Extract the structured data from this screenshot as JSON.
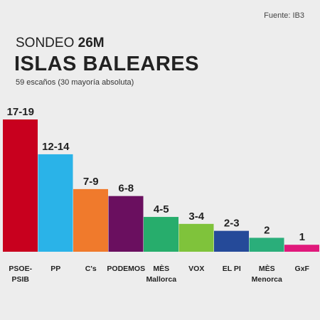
{
  "source": "Fuente: IB3",
  "title": {
    "prefix": "SONDEO",
    "emphasis": "26M"
  },
  "headline": "ISLAS BALEARES",
  "subtitle": "59 escaños (30 mayoría absoluta)",
  "chart_data": {
    "type": "bar",
    "title": "SONDEO 26M ISLAS BALEARES",
    "subtitle": "59 escaños (30 mayoría absoluta)",
    "categories": [
      "PSOE-PSIB",
      "PP",
      "C's",
      "PODEMOS",
      "MÈS Mallorca",
      "VOX",
      "EL PI",
      "MÈS Menorca",
      "GxF"
    ],
    "category_lines": [
      [
        "PSOE-",
        "PSIB"
      ],
      [
        "PP"
      ],
      [
        "C's"
      ],
      [
        "PODEMOS"
      ],
      [
        "MÈS",
        "Mallorca"
      ],
      [
        "VOX"
      ],
      [
        "EL PI"
      ],
      [
        "MÈS",
        "Menorca"
      ],
      [
        "GxF"
      ]
    ],
    "value_labels": [
      "17-19",
      "12-14",
      "7-9",
      "6-8",
      "4-5",
      "3-4",
      "2-3",
      "2",
      "1"
    ],
    "values": [
      19,
      14,
      9,
      8,
      5,
      4,
      3,
      2,
      1
    ],
    "colors": [
      "#c8001e",
      "#2ab3e8",
      "#f07a2c",
      "#6a0f5f",
      "#27ad6c",
      "#7fc33b",
      "#254a99",
      "#2aae7a",
      "#e0197b"
    ],
    "ylim": [
      0,
      19
    ],
    "grid": false,
    "legend": "none"
  }
}
